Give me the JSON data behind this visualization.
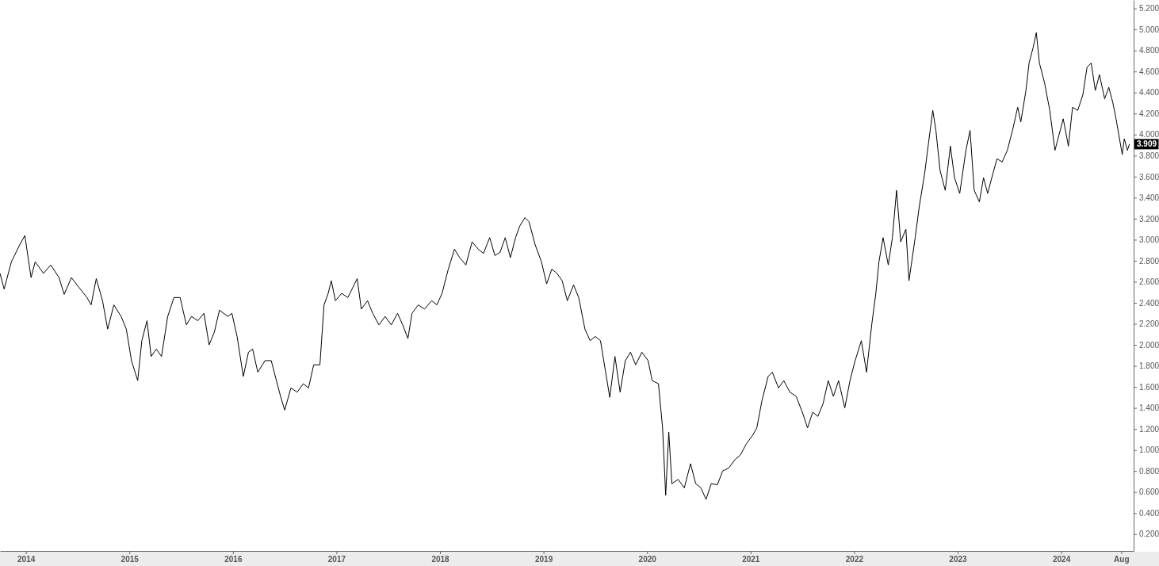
{
  "chart_data": {
    "type": "line",
    "x": [
      2013.75,
      2013.79,
      2013.86,
      2013.94,
      2013.99,
      2014.05,
      2014.09,
      2014.17,
      2014.24,
      2014.32,
      2014.37,
      2014.44,
      2014.51,
      2014.59,
      2014.63,
      2014.68,
      2014.74,
      2014.79,
      2014.85,
      2014.92,
      2014.97,
      2015.02,
      2015.08,
      2015.12,
      2015.17,
      2015.21,
      2015.26,
      2015.31,
      2015.37,
      2015.43,
      2015.49,
      2015.55,
      2015.6,
      2015.66,
      2015.72,
      2015.77,
      2015.82,
      2015.87,
      2015.95,
      2015.99,
      2016.04,
      2016.1,
      2016.15,
      2016.19,
      2016.24,
      2016.31,
      2016.37,
      2016.42,
      2016.46,
      2016.5,
      2016.56,
      2016.62,
      2016.68,
      2016.73,
      2016.78,
      2016.84,
      2016.88,
      2016.92,
      2016.95,
      2016.99,
      2017.05,
      2017.11,
      2017.15,
      2017.2,
      2017.24,
      2017.3,
      2017.35,
      2017.41,
      2017.47,
      2017.53,
      2017.59,
      2017.64,
      2017.69,
      2017.73,
      2017.79,
      2017.85,
      2017.92,
      2017.97,
      2018.02,
      2018.08,
      2018.14,
      2018.19,
      2018.25,
      2018.31,
      2018.37,
      2018.42,
      2018.48,
      2018.53,
      2018.58,
      2018.63,
      2018.68,
      2018.73,
      2018.77,
      2018.82,
      2018.86,
      2018.92,
      2018.98,
      2019.03,
      2019.08,
      2019.13,
      2019.18,
      2019.23,
      2019.29,
      2019.34,
      2019.4,
      2019.45,
      2019.5,
      2019.55,
      2019.6,
      2019.64,
      2019.69,
      2019.74,
      2019.79,
      2019.84,
      2019.89,
      2019.95,
      2020.01,
      2020.05,
      2020.11,
      2020.15,
      2020.18,
      2020.21,
      2020.24,
      2020.3,
      2020.36,
      2020.42,
      2020.47,
      2020.52,
      2020.57,
      2020.62,
      2020.68,
      2020.73,
      2020.79,
      2020.85,
      2020.9,
      2020.96,
      2021.02,
      2021.06,
      2021.11,
      2021.17,
      2021.21,
      2021.27,
      2021.32,
      2021.38,
      2021.44,
      2021.5,
      2021.55,
      2021.6,
      2021.65,
      2021.7,
      2021.75,
      2021.8,
      2021.85,
      2021.91,
      2021.96,
      2022.01,
      2022.07,
      2022.12,
      2022.17,
      2022.21,
      2022.24,
      2022.28,
      2022.33,
      2022.37,
      2022.41,
      2022.45,
      2022.5,
      2022.53,
      2022.59,
      2022.63,
      2022.68,
      2022.72,
      2022.76,
      2022.79,
      2022.83,
      2022.88,
      2022.93,
      2022.97,
      2023.02,
      2023.08,
      2023.12,
      2023.16,
      2023.21,
      2023.25,
      2023.29,
      2023.33,
      2023.38,
      2023.43,
      2023.48,
      2023.53,
      2023.58,
      2023.61,
      2023.66,
      2023.69,
      2023.73,
      2023.76,
      2023.79,
      2023.84,
      2023.89,
      2023.94,
      2023.98,
      2024.02,
      2024.07,
      2024.11,
      2024.16,
      2024.21,
      2024.25,
      2024.29,
      2024.33,
      2024.37,
      2024.42,
      2024.46,
      2024.5,
      2024.53,
      2024.59,
      2024.61,
      2024.64,
      2024.66
    ],
    "values": [
      2.68,
      2.53,
      2.79,
      2.95,
      3.04,
      2.64,
      2.79,
      2.68,
      2.76,
      2.64,
      2.48,
      2.64,
      2.55,
      2.45,
      2.38,
      2.63,
      2.42,
      2.15,
      2.38,
      2.27,
      2.15,
      1.85,
      1.66,
      2.04,
      2.23,
      1.89,
      1.96,
      1.89,
      2.27,
      2.45,
      2.45,
      2.19,
      2.27,
      2.23,
      2.3,
      2.0,
      2.12,
      2.33,
      2.27,
      2.3,
      2.08,
      1.7,
      1.93,
      1.96,
      1.74,
      1.85,
      1.85,
      1.66,
      1.51,
      1.38,
      1.59,
      1.55,
      1.63,
      1.59,
      1.81,
      1.81,
      2.38,
      2.49,
      2.61,
      2.42,
      2.49,
      2.45,
      2.53,
      2.63,
      2.34,
      2.42,
      2.3,
      2.19,
      2.27,
      2.19,
      2.3,
      2.19,
      2.06,
      2.3,
      2.38,
      2.34,
      2.42,
      2.38,
      2.49,
      2.72,
      2.91,
      2.83,
      2.76,
      2.98,
      2.91,
      2.87,
      3.02,
      2.85,
      2.88,
      3.02,
      2.83,
      3.02,
      3.13,
      3.21,
      3.17,
      2.95,
      2.79,
      2.58,
      2.72,
      2.68,
      2.61,
      2.42,
      2.57,
      2.45,
      2.15,
      2.04,
      2.08,
      2.04,
      1.74,
      1.5,
      1.89,
      1.55,
      1.85,
      1.93,
      1.81,
      1.93,
      1.85,
      1.66,
      1.63,
      1.21,
      0.57,
      1.17,
      0.68,
      0.72,
      0.64,
      0.87,
      0.68,
      0.64,
      0.53,
      0.68,
      0.67,
      0.8,
      0.83,
      0.91,
      0.95,
      1.06,
      1.14,
      1.21,
      1.47,
      1.7,
      1.74,
      1.59,
      1.66,
      1.55,
      1.51,
      1.36,
      1.21,
      1.36,
      1.32,
      1.44,
      1.66,
      1.51,
      1.66,
      1.4,
      1.66,
      1.85,
      2.04,
      1.74,
      2.19,
      2.49,
      2.79,
      3.02,
      2.76,
      3.02,
      3.47,
      2.98,
      3.1,
      2.61,
      3.02,
      3.32,
      3.62,
      3.93,
      4.23,
      4.04,
      3.66,
      3.47,
      3.89,
      3.59,
      3.44,
      3.85,
      4.04,
      3.47,
      3.36,
      3.59,
      3.44,
      3.59,
      3.77,
      3.74,
      3.85,
      4.04,
      4.26,
      4.12,
      4.42,
      4.68,
      4.83,
      4.97,
      4.68,
      4.49,
      4.23,
      3.85,
      4.0,
      4.15,
      3.89,
      4.26,
      4.23,
      4.38,
      4.64,
      4.68,
      4.42,
      4.57,
      4.34,
      4.45,
      4.3,
      4.15,
      3.81,
      3.96,
      3.85,
      3.91
    ],
    "color": "#000000",
    "xlim": [
      2013.75,
      2024.7
    ],
    "ylim": [
      0.04,
      5.28
    ],
    "xticks": [
      {
        "value": 2014,
        "label": "2014"
      },
      {
        "value": 2015,
        "label": "2015"
      },
      {
        "value": 2016,
        "label": "2016"
      },
      {
        "value": 2017,
        "label": "2017"
      },
      {
        "value": 2018,
        "label": "2018"
      },
      {
        "value": 2019,
        "label": "2019"
      },
      {
        "value": 2020,
        "label": "2020"
      },
      {
        "value": 2021,
        "label": "2021"
      },
      {
        "value": 2022,
        "label": "2022"
      },
      {
        "value": 2023,
        "label": "2023"
      },
      {
        "value": 2024,
        "label": "2024"
      },
      {
        "value": 2024.58,
        "label": "Aug"
      }
    ],
    "yticks": [
      {
        "value": 0.2,
        "label": "0.200"
      },
      {
        "value": 0.4,
        "label": "0.400"
      },
      {
        "value": 0.6,
        "label": "0.600"
      },
      {
        "value": 0.8,
        "label": "0.800"
      },
      {
        "value": 1.0,
        "label": "1.000"
      },
      {
        "value": 1.2,
        "label": "1.200"
      },
      {
        "value": 1.4,
        "label": "1.400"
      },
      {
        "value": 1.6,
        "label": "1.600"
      },
      {
        "value": 1.8,
        "label": "1.800"
      },
      {
        "value": 2.0,
        "label": "2.000"
      },
      {
        "value": 2.2,
        "label": "2.200"
      },
      {
        "value": 2.4,
        "label": "2.400"
      },
      {
        "value": 2.6,
        "label": "2.600"
      },
      {
        "value": 2.8,
        "label": "2.800"
      },
      {
        "value": 3.0,
        "label": "3.000"
      },
      {
        "value": 3.2,
        "label": "3.200"
      },
      {
        "value": 3.4,
        "label": "3.400"
      },
      {
        "value": 3.6,
        "label": "3.600"
      },
      {
        "value": 3.8,
        "label": "3.800"
      },
      {
        "value": 4.0,
        "label": "4.000"
      },
      {
        "value": 4.2,
        "label": "4.200"
      },
      {
        "value": 4.4,
        "label": "4.400"
      },
      {
        "value": 4.6,
        "label": "4.600"
      },
      {
        "value": 4.8,
        "label": "4.800"
      },
      {
        "value": 5.0,
        "label": "5.000"
      },
      {
        "value": 5.2,
        "label": "5.200"
      }
    ],
    "grid": false,
    "marker": "none",
    "line_style": "solid",
    "annotations": [
      {
        "text": "3.909",
        "y": 3.909
      }
    ]
  }
}
